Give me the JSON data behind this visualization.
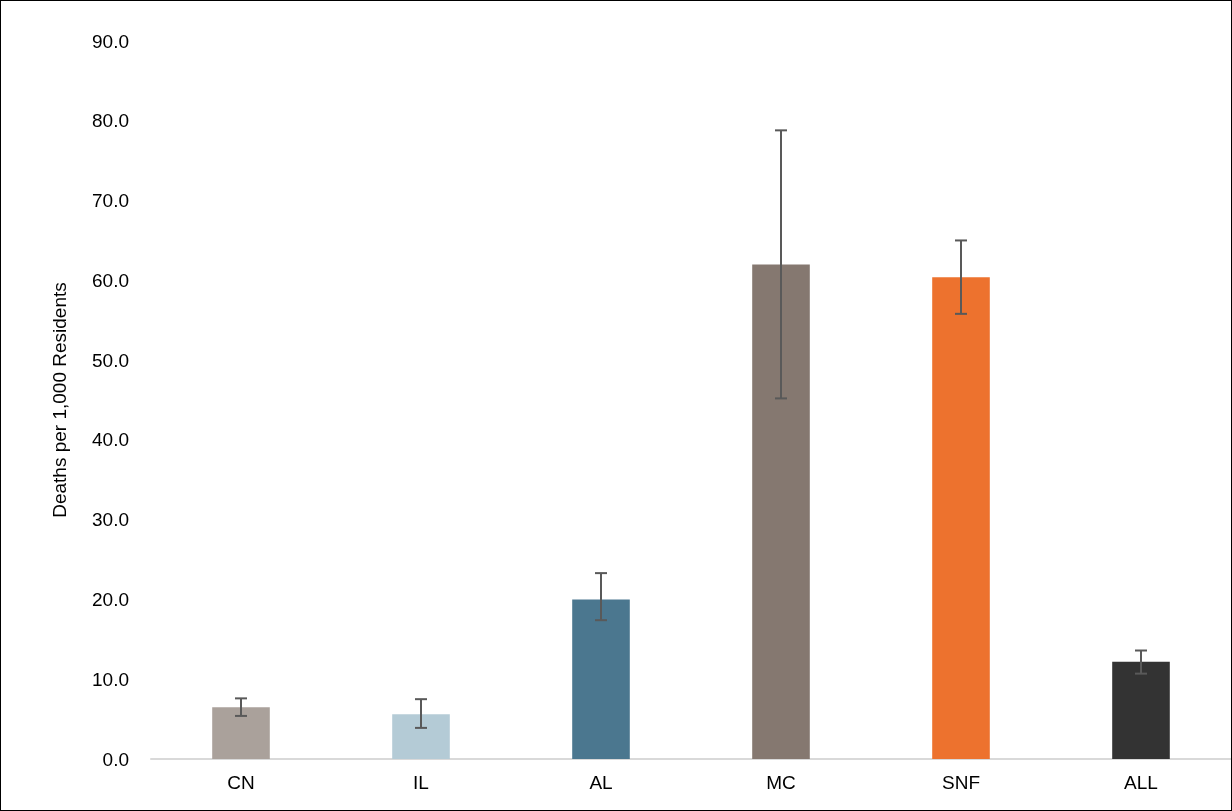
{
  "chart_data": {
    "type": "bar",
    "ylabel": "Deaths per 1,000 Residents",
    "categories": [
      "CN",
      "IL",
      "AL",
      "MC",
      "SNF",
      "ALL"
    ],
    "values": [
      6.5,
      5.6,
      20.0,
      62.0,
      60.4,
      12.2
    ],
    "colors": [
      "#aaa19b",
      "#b4cbd6",
      "#4b778f",
      "#857870",
      "#ed722e",
      "#333333"
    ],
    "errors": [
      [
        5.4,
        7.6
      ],
      [
        3.9,
        7.5
      ],
      [
        17.4,
        23.3
      ],
      [
        45.2,
        78.8
      ],
      [
        55.8,
        65.0
      ],
      [
        10.7,
        13.6
      ]
    ],
    "ylim": [
      0,
      90
    ],
    "yticks": [
      {
        "value": 0,
        "label": "0.0"
      },
      {
        "value": 10,
        "label": "10.0"
      },
      {
        "value": 20,
        "label": "20.0"
      },
      {
        "value": 30,
        "label": "30.0"
      },
      {
        "value": 40,
        "label": "40.0"
      },
      {
        "value": 50,
        "label": "50.0"
      },
      {
        "value": 60,
        "label": "60.0"
      },
      {
        "value": 70,
        "label": "70.0"
      },
      {
        "value": 80,
        "label": "80.0"
      },
      {
        "value": 90,
        "label": "90.0"
      }
    ],
    "grid": false
  }
}
